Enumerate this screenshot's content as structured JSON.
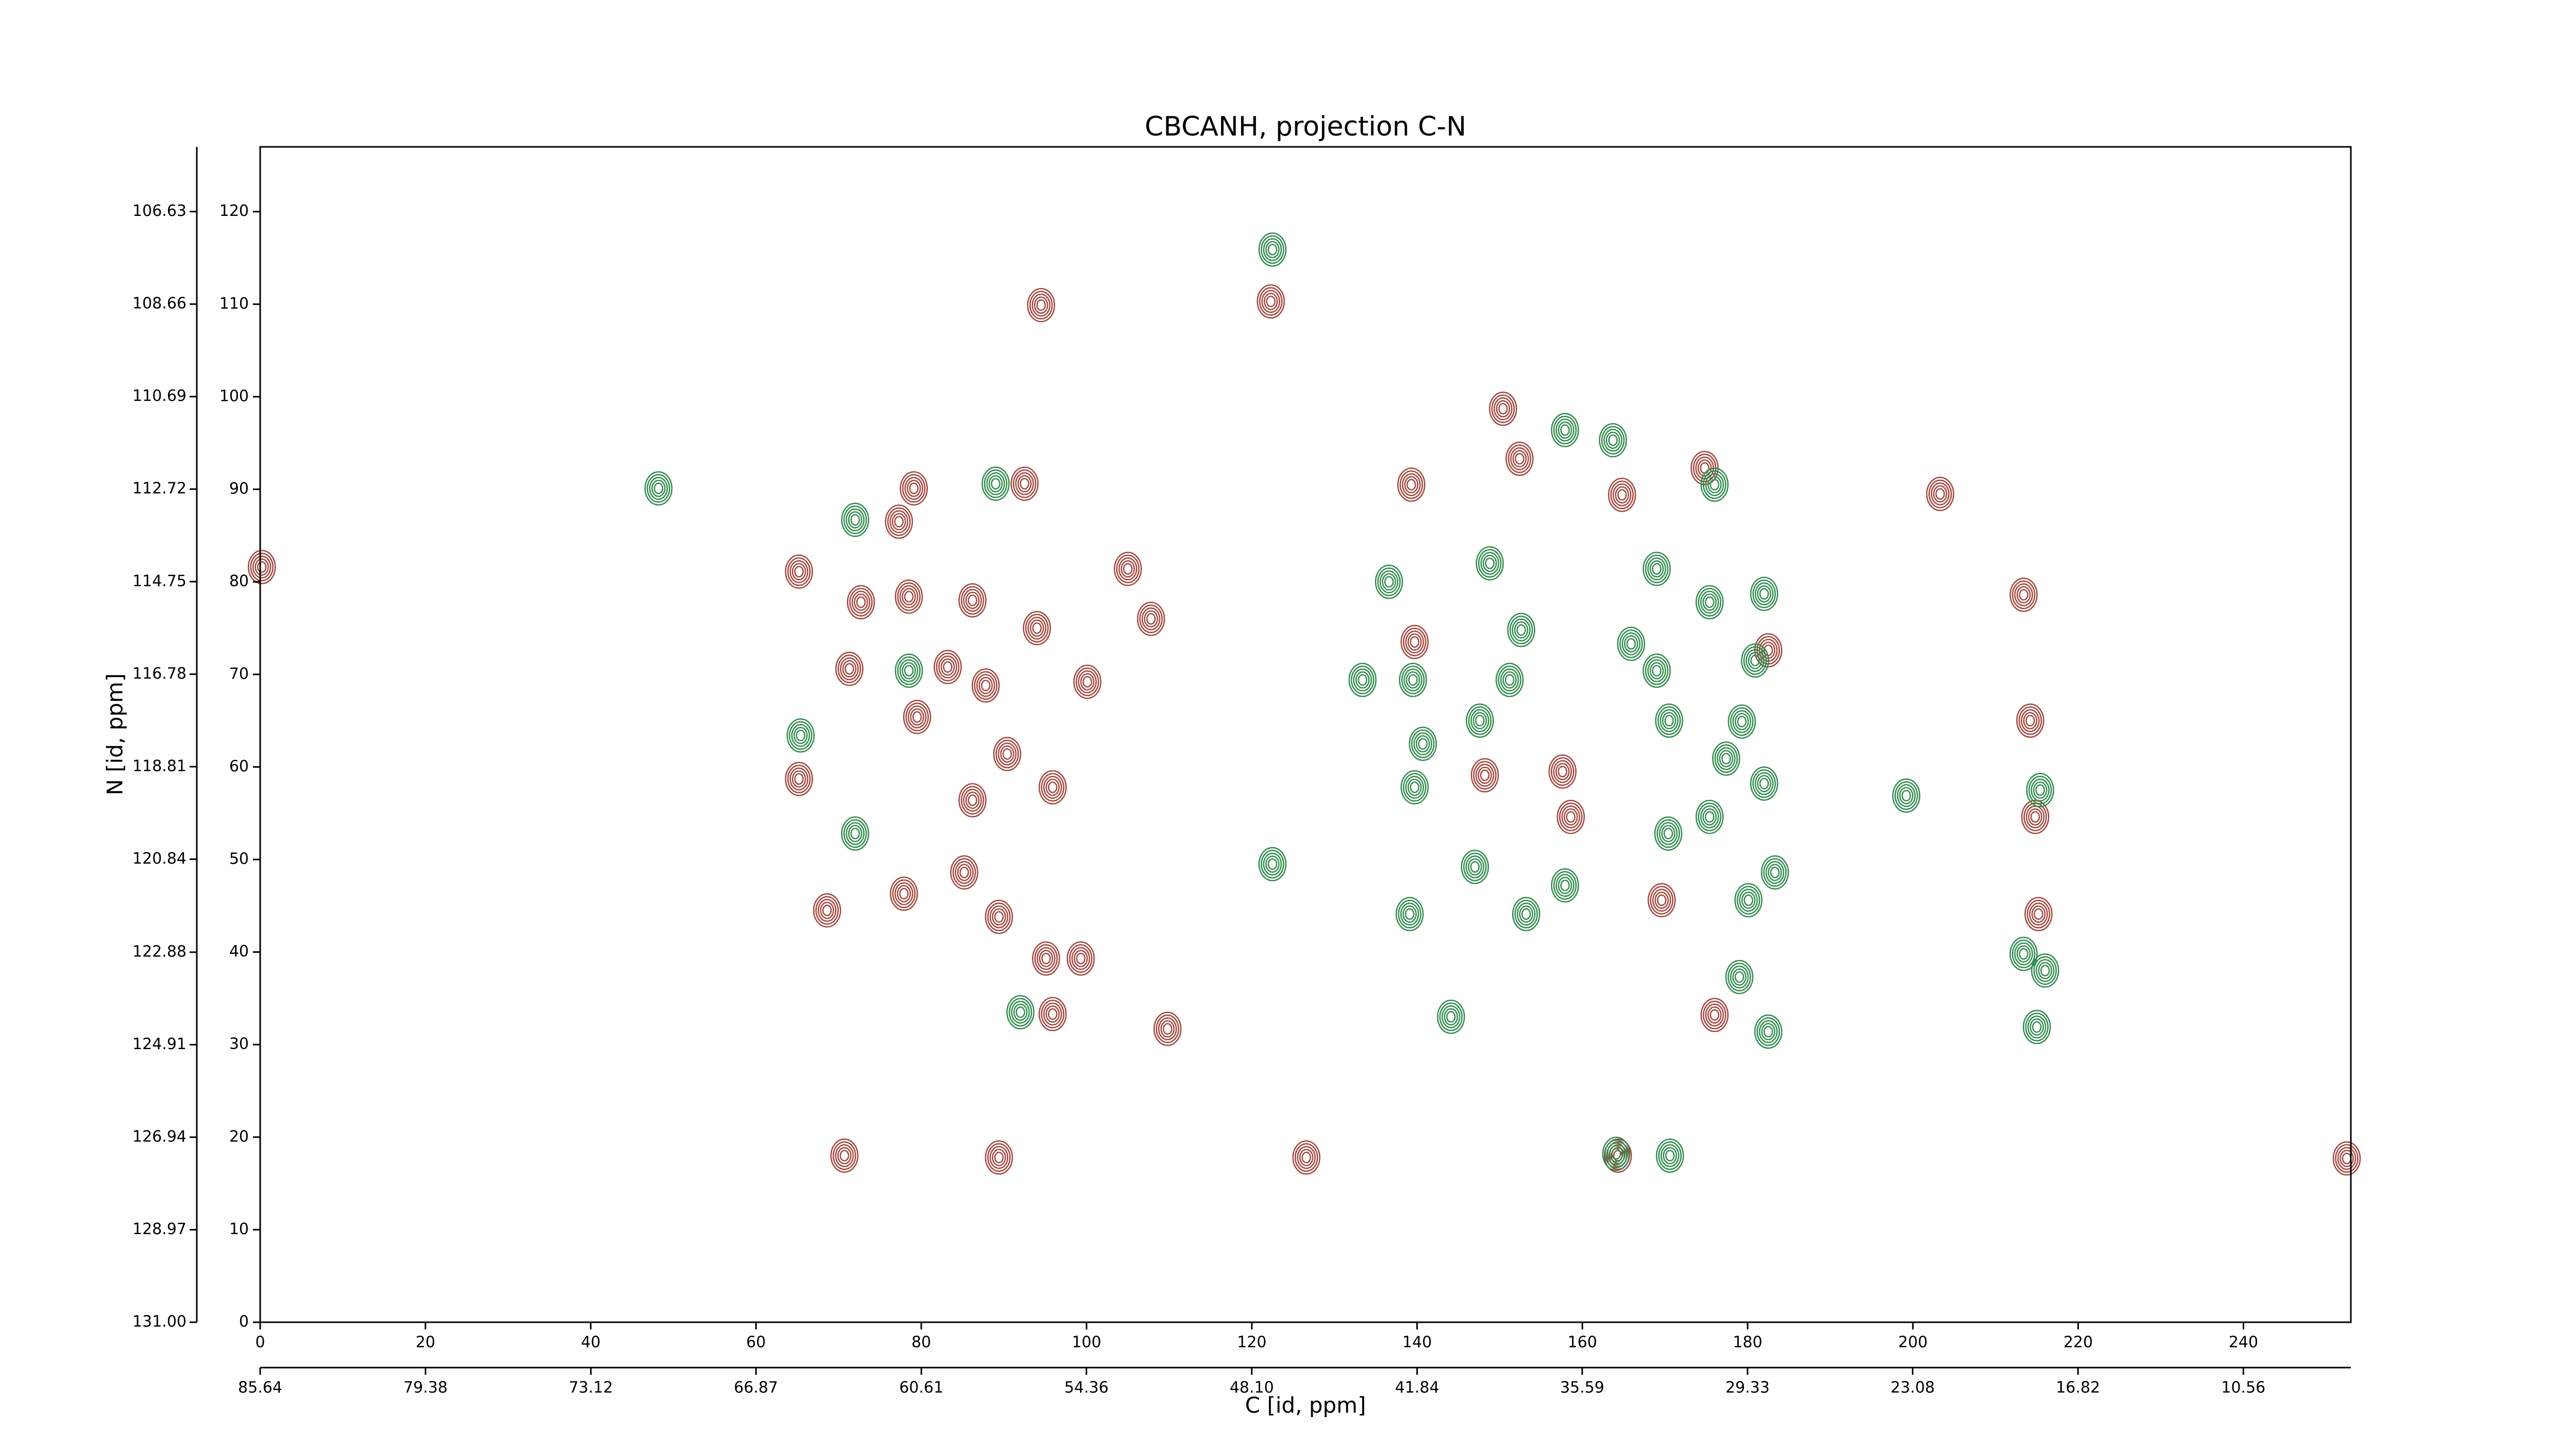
{
  "chart_data": {
    "type": "contour",
    "title": "CBCANH, projection C-N",
    "xlabel": "C [id, ppm]",
    "ylabel": "N [id, ppm]",
    "xlim": [
      0,
      253
    ],
    "xticks": [
      0,
      20,
      40,
      60,
      80,
      100,
      120,
      140,
      160,
      180,
      200,
      220,
      240
    ],
    "ylim": [
      0,
      127
    ],
    "yticks": [
      0,
      10,
      20,
      30,
      40,
      50,
      60,
      70,
      80,
      90,
      100,
      110,
      120
    ],
    "x2lim": [
      85.64,
      6.49
    ],
    "x2ticks": [
      85.64,
      79.38,
      73.12,
      66.87,
      60.61,
      54.36,
      {
        "value": 48.1,
        "label": "48.10"
      },
      41.84,
      35.59,
      29.33,
      23.08,
      16.82,
      10.56
    ],
    "y2lim": [
      131,
      105.21
    ],
    "y2ticks": [
      {
        "value": 131,
        "label": "131.00"
      },
      128.97,
      126.94,
      124.91,
      122.88,
      120.84,
      118.81,
      116.78,
      114.75,
      112.72,
      110.69,
      108.66,
      106.63
    ],
    "series": [
      {
        "color": "#a3453c",
        "x": [
          122.3,
          94.5,
          79.1,
          92.5,
          77.3,
          65.2,
          72.7,
          78.5,
          86.2,
          94,
          105,
          107.8,
          71.3,
          83.2,
          87.8,
          100.1,
          79.5,
          90.4,
          86.2,
          95.9,
          65.2,
          85.2,
          89.4,
          95.1,
          99.3,
          95.9,
          109.8,
          68.6,
          77.9,
          70.7,
          89.4,
          126.6,
          164.3,
          176,
          139.7,
          139.3,
          150.4,
          152.4,
          158.6,
          148.2,
          157.6,
          169.6,
          182.5,
          174.8,
          213.4,
          214.2,
          214.8,
          215.2,
          203.3,
          164.8,
          0.2,
          252.5
        ],
        "y": [
          110.3,
          109.9,
          90.1,
          90.6,
          86.5,
          81.1,
          77.8,
          78.4,
          78,
          75,
          81.4,
          76,
          70.6,
          70.8,
          68.8,
          69.2,
          65.4,
          61.4,
          56.4,
          57.8,
          58.7,
          48.6,
          43.8,
          39.3,
          39.3,
          33.3,
          31.7,
          44.5,
          46.3,
          18,
          17.8,
          17.8,
          18,
          33.2,
          73.5,
          90.5,
          98.7,
          93.3,
          54.6,
          59.1,
          59.5,
          45.6,
          72.6,
          92.3,
          78.6,
          65,
          54.6,
          44.1,
          89.5,
          89.4,
          81.6,
          17.7
        ]
      },
      {
        "color": "#2f8a4c",
        "x": [
          48.2,
          72,
          89,
          78.5,
          136.6,
          148.8,
          152.6,
          133.4,
          139.5,
          147.6,
          151.2,
          157.9,
          163.7,
          176,
          169,
          175.4,
          182,
          165.9,
          169,
          180.9,
          170.5,
          179.3,
          177.4,
          140.7,
          139.7,
          170.4,
          175.4,
          182,
          183.3,
          180.1,
          147,
          153.2,
          139.1,
          122.5,
          72,
          65.4,
          92,
          215.4,
          213.4,
          216,
          215,
          179,
          182.5,
          144.1,
          164.1,
          170.6,
          122.5,
          157.9,
          199.2
        ],
        "y": [
          90.1,
          86.7,
          90.6,
          70.4,
          80,
          82,
          74.8,
          69.4,
          69.4,
          65,
          69.4,
          96.4,
          95.3,
          90.5,
          81.4,
          77.8,
          78.7,
          73.3,
          70.4,
          71.5,
          65,
          64.9,
          60.9,
          62.5,
          57.8,
          52.8,
          54.6,
          58.2,
          48.6,
          45.6,
          49.2,
          44.1,
          44.1,
          49.5,
          52.8,
          63.4,
          33.5,
          57.5,
          39.8,
          38,
          31.9,
          37.3,
          31.4,
          33,
          18.2,
          18,
          115.9,
          47.2,
          56.9
        ]
      }
    ]
  }
}
